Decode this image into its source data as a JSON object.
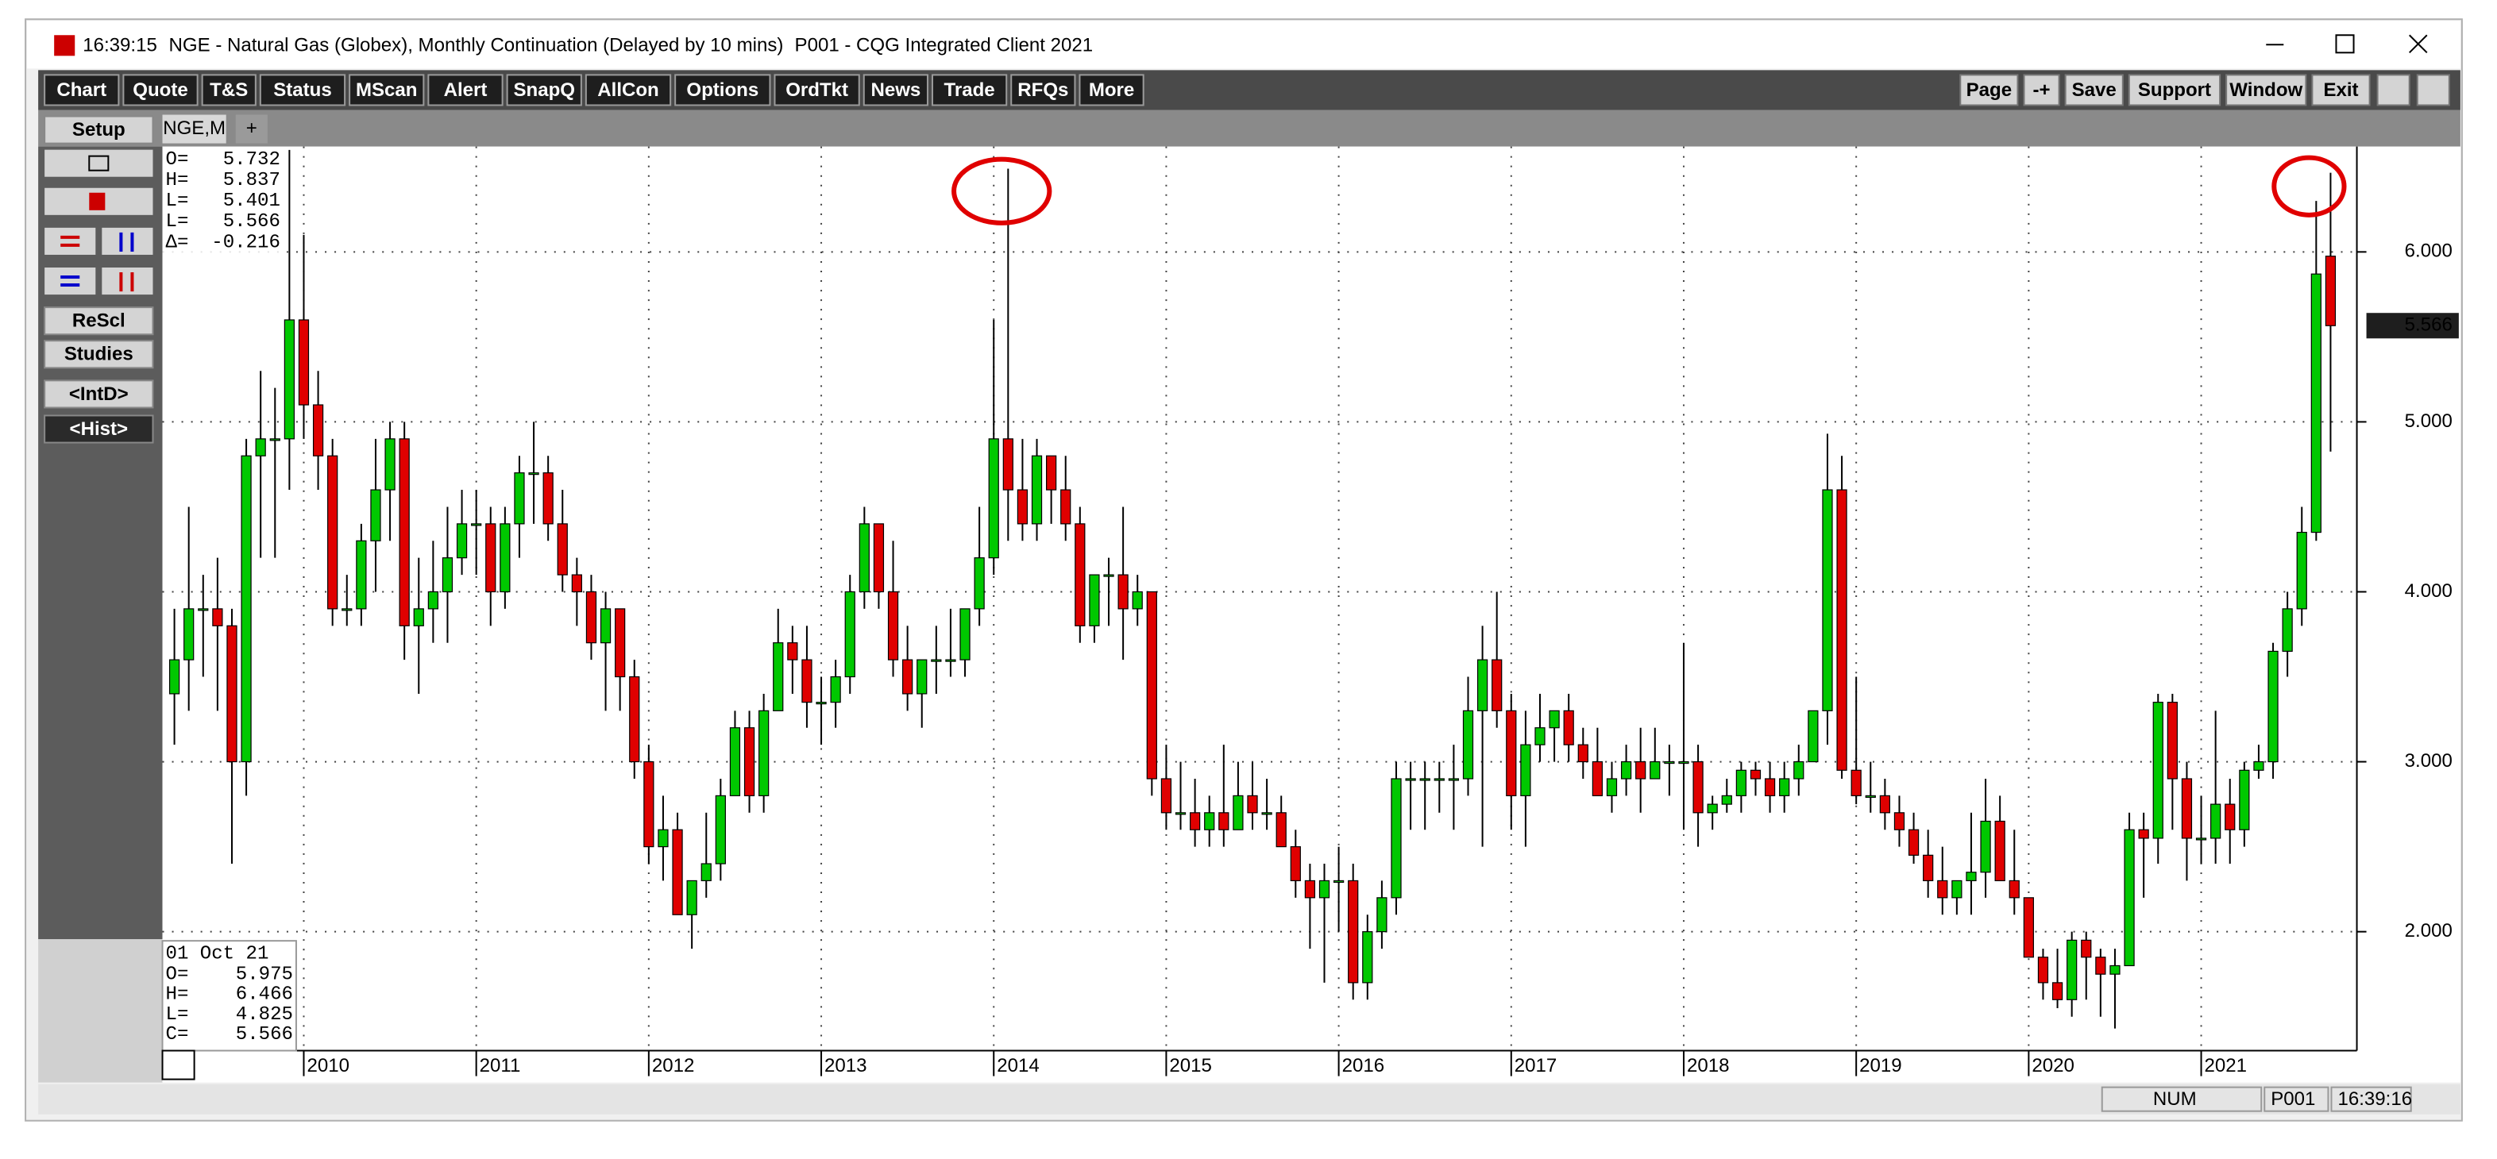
{
  "window": {
    "time": "16:39:15",
    "title": "NGE - Natural Gas (Globex), Monthly Continuation (Delayed by 10 mins)",
    "app": "P001 - CQG Integrated Client 2021"
  },
  "menu": [
    "Chart",
    "Quote",
    "T&S",
    "Status",
    "MScan",
    "Alert",
    "SnapQ",
    "AllCon",
    "Options",
    "OrdTkt",
    "News",
    "Trade",
    "RFQs",
    "More"
  ],
  "toolbar_right": [
    "Page",
    "-+",
    "Save",
    "Support",
    "Window",
    "Exit"
  ],
  "side_buttons": [
    "Setup",
    "ReScl",
    "Studies",
    "<IntD>",
    "<Hist>"
  ],
  "tabs": [
    "NGE,M",
    "+"
  ],
  "quote_box": [
    [
      "O=",
      "5.732"
    ],
    [
      "H=",
      "5.837"
    ],
    [
      "L=",
      "5.401"
    ],
    [
      "L=",
      "5.566"
    ],
    [
      "Δ=",
      "-0.216"
    ]
  ],
  "bar_info": {
    "date": "01 Oct 21",
    "rows": [
      [
        "O=",
        "5.975"
      ],
      [
        "H=",
        "6.466"
      ],
      [
        "L=",
        "4.825"
      ],
      [
        "C=",
        "5.566"
      ]
    ]
  },
  "status": [
    "NUM",
    "P001",
    "16:39:16"
  ],
  "chart_data": {
    "type": "candlestick",
    "categories": [
      null,
      null,
      null,
      null,
      null,
      null,
      null,
      null,
      null,
      "2010",
      null,
      null,
      null,
      null,
      null,
      null,
      null,
      null,
      null,
      null,
      null,
      "2011",
      null,
      null,
      null,
      null,
      null,
      null,
      null,
      null,
      null,
      null,
      null,
      "2012",
      null,
      null,
      null,
      null,
      null,
      null,
      null,
      null,
      null,
      null,
      null,
      "2013",
      null,
      null,
      null,
      null,
      null,
      null,
      null,
      null,
      null,
      null,
      null,
      "2014",
      null,
      null,
      null,
      null,
      null,
      null,
      null,
      null,
      null,
      null,
      null,
      "2015",
      null,
      null,
      null,
      null,
      null,
      null,
      null,
      null,
      null,
      null,
      null,
      "2016",
      null,
      null,
      null,
      null,
      null,
      null,
      null,
      null,
      null,
      null,
      null,
      "2017",
      null,
      null,
      null,
      null,
      null,
      null,
      null,
      null,
      null,
      null,
      null,
      "2018",
      null,
      null,
      null,
      null,
      null,
      null,
      null,
      null,
      null,
      null,
      null,
      "2019",
      null,
      null,
      null,
      null,
      null,
      null,
      null,
      null,
      null,
      null,
      null,
      "2020",
      null,
      null,
      null,
      null,
      null,
      null,
      null,
      null,
      null,
      null,
      null,
      "2021",
      null,
      null,
      null,
      null,
      null,
      null,
      null,
      null,
      null
    ],
    "open": [
      3.4,
      3.6,
      3.9,
      3.9,
      3.8,
      3.0,
      4.8,
      4.9,
      4.9,
      5.6,
      5.1,
      4.8,
      3.9,
      3.9,
      4.3,
      4.6,
      4.9,
      3.8,
      3.9,
      4.0,
      4.2,
      4.4,
      4.4,
      4.0,
      4.4,
      4.7,
      4.7,
      4.4,
      4.1,
      4.0,
      3.7,
      3.9,
      3.5,
      3.0,
      2.5,
      2.6,
      2.1,
      2.3,
      2.4,
      2.8,
      3.2,
      2.8,
      3.3,
      3.7,
      3.6,
      3.35,
      3.35,
      3.5,
      4.0,
      4.4,
      4.0,
      3.6,
      3.4,
      3.6,
      3.6,
      3.6,
      3.9,
      4.2,
      4.9,
      4.6,
      4.4,
      4.8,
      4.6,
      4.4,
      3.8,
      4.1,
      4.1,
      3.9,
      4.0,
      2.9,
      2.7,
      2.7,
      2.6,
      2.7,
      2.6,
      2.8,
      2.7,
      2.7,
      2.5,
      2.3,
      2.2,
      2.3,
      2.3,
      1.7,
      2.0,
      2.2,
      2.9,
      2.9,
      2.9,
      2.9,
      2.9,
      3.3,
      3.6,
      3.3,
      2.8,
      3.1,
      3.2,
      3.3,
      3.1,
      3.0,
      2.8,
      2.9,
      3.0,
      2.9,
      3.0,
      3.0,
      3.0,
      2.7,
      2.75,
      2.8,
      2.95,
      2.9,
      2.8,
      2.9,
      3.0,
      3.3,
      4.6,
      2.95,
      2.8,
      2.8,
      2.7,
      2.6,
      2.45,
      2.3,
      2.2,
      2.3,
      2.35,
      2.65,
      2.3,
      2.2,
      1.85,
      1.7,
      1.6,
      1.95,
      1.85,
      1.75,
      1.8,
      2.6,
      2.55,
      3.35,
      2.9,
      2.55,
      2.55,
      2.75,
      2.6,
      2.95,
      3.0,
      3.65,
      3.9,
      4.35,
      5.975
    ],
    "high": [
      3.9,
      4.5,
      4.1,
      4.2,
      3.9,
      4.9,
      5.3,
      5.2,
      6.6,
      6.1,
      5.3,
      4.9,
      4.1,
      4.4,
      4.9,
      5.0,
      5.0,
      4.2,
      4.3,
      4.5,
      4.6,
      4.6,
      4.5,
      4.5,
      4.8,
      5.0,
      4.8,
      4.6,
      4.2,
      4.1,
      4.0,
      3.9,
      3.6,
      3.1,
      2.8,
      2.7,
      2.3,
      2.7,
      2.9,
      3.3,
      3.3,
      3.4,
      3.9,
      3.8,
      3.8,
      3.5,
      3.6,
      4.1,
      4.5,
      4.4,
      4.3,
      3.8,
      3.6,
      3.8,
      3.9,
      3.9,
      4.5,
      5.6,
      6.49,
      4.9,
      4.9,
      4.8,
      4.8,
      4.5,
      4.1,
      4.2,
      4.5,
      4.1,
      4.0,
      3.1,
      3.0,
      2.9,
      2.8,
      3.1,
      3.0,
      3.0,
      2.9,
      2.8,
      2.6,
      2.4,
      2.4,
      2.5,
      2.4,
      2.1,
      2.3,
      3.0,
      3.0,
      3.0,
      3.0,
      3.1,
      3.5,
      3.8,
      4.0,
      3.4,
      3.3,
      3.4,
      3.3,
      3.4,
      3.2,
      3.2,
      3.0,
      3.1,
      3.2,
      3.2,
      3.1,
      3.7,
      3.1,
      2.8,
      2.9,
      3.0,
      3.0,
      3.0,
      3.0,
      3.1,
      3.3,
      4.93,
      4.8,
      3.5,
      3.0,
      2.9,
      2.8,
      2.7,
      2.6,
      2.5,
      2.3,
      2.7,
      2.9,
      2.8,
      2.6,
      2.2,
      1.9,
      1.9,
      2.0,
      2.0,
      1.9,
      1.9,
      2.7,
      2.7,
      3.4,
      3.4,
      3.0,
      2.8,
      3.3,
      2.9,
      3.0,
      3.1,
      3.7,
      4.0,
      4.5,
      6.3,
      6.466
    ],
    "low": [
      3.1,
      3.3,
      3.5,
      3.3,
      2.4,
      2.8,
      4.2,
      4.2,
      4.6,
      4.9,
      4.6,
      3.8,
      3.8,
      3.8,
      4.0,
      4.3,
      3.6,
      3.4,
      3.7,
      3.7,
      4.1,
      4.1,
      3.8,
      3.9,
      4.2,
      4.4,
      4.3,
      4.0,
      3.8,
      3.6,
      3.3,
      3.3,
      2.9,
      2.4,
      2.3,
      2.1,
      1.9,
      2.2,
      2.3,
      2.8,
      2.7,
      2.7,
      3.3,
      3.4,
      3.2,
      3.1,
      3.2,
      3.4,
      3.9,
      3.9,
      3.5,
      3.3,
      3.2,
      3.4,
      3.5,
      3.5,
      3.8,
      4.1,
      4.3,
      4.3,
      4.3,
      4.4,
      4.3,
      3.7,
      3.7,
      3.8,
      3.6,
      3.8,
      2.8,
      2.6,
      2.6,
      2.5,
      2.5,
      2.5,
      2.6,
      2.6,
      2.6,
      2.5,
      2.2,
      1.9,
      1.7,
      2.0,
      1.6,
      1.6,
      1.9,
      2.1,
      2.6,
      2.6,
      2.7,
      2.6,
      2.8,
      2.5,
      3.2,
      2.6,
      2.5,
      3.0,
      3.0,
      3.0,
      2.9,
      2.8,
      2.7,
      2.8,
      2.7,
      2.9,
      2.8,
      2.6,
      2.5,
      2.6,
      2.7,
      2.7,
      2.8,
      2.7,
      2.7,
      2.8,
      3.0,
      3.1,
      2.9,
      2.75,
      2.7,
      2.6,
      2.5,
      2.4,
      2.2,
      2.1,
      2.1,
      2.1,
      2.2,
      2.3,
      2.1,
      1.85,
      1.6,
      1.55,
      1.5,
      1.6,
      1.5,
      1.43,
      1.8,
      2.2,
      2.4,
      2.6,
      2.3,
      2.4,
      2.4,
      2.4,
      2.5,
      2.9,
      2.9,
      3.5,
      3.8,
      4.3,
      4.825
    ],
    "close": [
      3.6,
      3.9,
      3.9,
      3.8,
      3.0,
      4.8,
      4.9,
      4.9,
      5.6,
      5.1,
      4.8,
      3.9,
      3.9,
      4.3,
      4.6,
      4.9,
      3.8,
      3.9,
      4.0,
      4.2,
      4.4,
      4.4,
      4.0,
      4.4,
      4.7,
      4.7,
      4.4,
      4.1,
      4.0,
      3.7,
      3.9,
      3.5,
      3.0,
      2.5,
      2.6,
      2.1,
      2.3,
      2.4,
      2.8,
      3.2,
      2.8,
      3.3,
      3.7,
      3.6,
      3.35,
      3.35,
      3.5,
      4.0,
      4.4,
      4.0,
      3.6,
      3.4,
      3.6,
      3.6,
      3.6,
      3.9,
      4.2,
      4.9,
      4.6,
      4.4,
      4.8,
      4.6,
      4.4,
      3.8,
      4.1,
      4.1,
      3.9,
      4.0,
      2.9,
      2.7,
      2.7,
      2.6,
      2.7,
      2.6,
      2.8,
      2.7,
      2.7,
      2.5,
      2.3,
      2.2,
      2.3,
      2.3,
      1.7,
      2.0,
      2.2,
      2.9,
      2.9,
      2.9,
      2.9,
      2.9,
      3.3,
      3.6,
      3.3,
      2.8,
      3.1,
      3.2,
      3.3,
      3.1,
      3.0,
      2.8,
      2.9,
      3.0,
      2.9,
      3.0,
      3.0,
      3.0,
      2.7,
      2.75,
      2.8,
      2.95,
      2.9,
      2.8,
      2.9,
      3.0,
      3.3,
      4.6,
      2.95,
      2.8,
      2.8,
      2.7,
      2.6,
      2.45,
      2.3,
      2.2,
      2.3,
      2.35,
      2.65,
      2.3,
      2.2,
      1.85,
      1.7,
      1.6,
      1.95,
      1.85,
      1.75,
      1.8,
      2.6,
      2.55,
      3.35,
      2.9,
      2.55,
      2.55,
      2.75,
      2.6,
      2.95,
      3.0,
      3.65,
      3.9,
      4.35,
      5.87,
      5.566
    ],
    "up_color": "#00c800",
    "down_color": "#e00000",
    "ylim": [
      1.3,
      6.62
    ],
    "yticks": [
      {
        "value": 2,
        "label": "2.000"
      },
      {
        "value": 3,
        "label": "3.000"
      },
      {
        "value": 4,
        "label": "4.000"
      },
      {
        "value": 5,
        "label": "5.000"
      },
      {
        "value": 6,
        "label": "6.000"
      }
    ],
    "last_value": 5.566,
    "grid": true
  }
}
